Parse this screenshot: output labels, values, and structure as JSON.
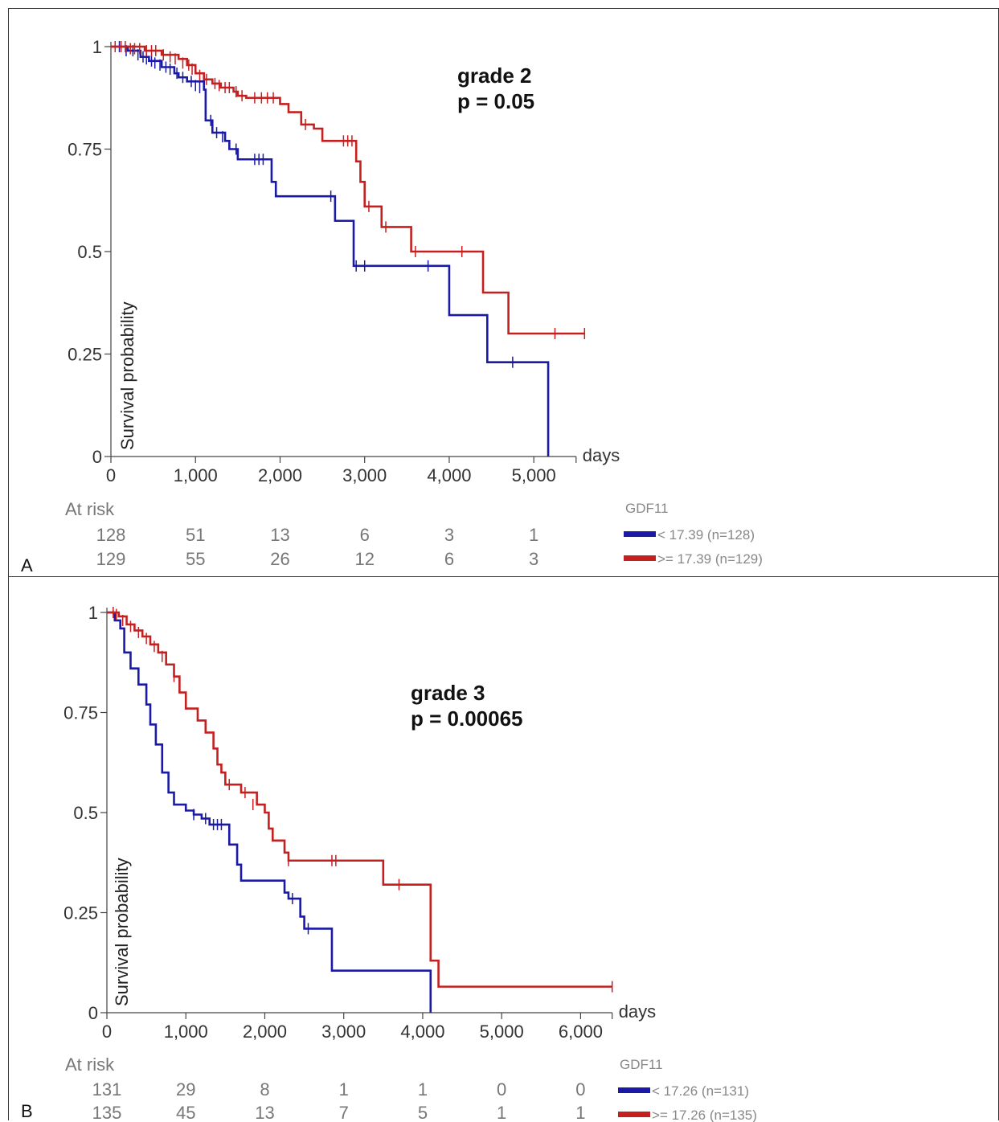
{
  "chart_data": [
    {
      "type": "line",
      "panel_label": "A",
      "annotation": [
        "grade 2",
        "p = 0.05"
      ],
      "xlabel": "days",
      "ylabel": "Survival probability",
      "xlim": [
        0,
        5500
      ],
      "ylim": [
        0,
        1
      ],
      "x_ticks": [
        0,
        1000,
        2000,
        3000,
        4000,
        5000
      ],
      "x_tick_labels": [
        "0",
        "1,000",
        "2,000",
        "3,000",
        "4,000",
        "5,000"
      ],
      "y_ticks": [
        0,
        0.25,
        0.5,
        0.75,
        1
      ],
      "y_tick_labels": [
        "0",
        "0.25",
        "0.5",
        "0.75",
        "1"
      ],
      "at_risk_label": "At risk",
      "legend_title": "GDF11",
      "legend_position": "bottom-right",
      "series": [
        {
          "name": "< 17.39 (n=128)",
          "color": "#1a1aa6",
          "at_risk": [
            "128",
            "51",
            "13",
            "6",
            "3",
            "1"
          ],
          "steps": [
            [
              0,
              1
            ],
            [
              200,
              0.99
            ],
            [
              350,
              0.975
            ],
            [
              450,
              0.965
            ],
            [
              600,
              0.95
            ],
            [
              750,
              0.935
            ],
            [
              800,
              0.925
            ],
            [
              900,
              0.915
            ],
            [
              1100,
              0.895
            ],
            [
              1120,
              0.82
            ],
            [
              1200,
              0.79
            ],
            [
              1350,
              0.77
            ],
            [
              1400,
              0.75
            ],
            [
              1500,
              0.725
            ],
            [
              1900,
              0.67
            ],
            [
              1950,
              0.635
            ],
            [
              2650,
              0.575
            ],
            [
              2870,
              0.465
            ],
            [
              4000,
              0.345
            ],
            [
              4450,
              0.23
            ],
            [
              5170,
              0
            ]
          ],
          "censor": [
            [
              100,
              1
            ],
            [
              180,
              0.99
            ],
            [
              260,
              0.99
            ],
            [
              320,
              0.98
            ],
            [
              380,
              0.975
            ],
            [
              420,
              0.97
            ],
            [
              480,
              0.965
            ],
            [
              520,
              0.96
            ],
            [
              580,
              0.955
            ],
            [
              650,
              0.95
            ],
            [
              700,
              0.945
            ],
            [
              780,
              0.935
            ],
            [
              850,
              0.925
            ],
            [
              950,
              0.915
            ],
            [
              1000,
              0.905
            ],
            [
              1050,
              0.9
            ],
            [
              1180,
              0.82
            ],
            [
              1250,
              0.79
            ],
            [
              1320,
              0.78
            ],
            [
              1480,
              0.75
            ],
            [
              1700,
              0.725
            ],
            [
              1750,
              0.725
            ],
            [
              1800,
              0.725
            ],
            [
              2600,
              0.635
            ],
            [
              2900,
              0.465
            ],
            [
              3000,
              0.465
            ],
            [
              3750,
              0.465
            ],
            [
              4750,
              0.23
            ]
          ]
        },
        {
          "name": ">= 17.39 (n=129)",
          "color": "#c42020",
          "at_risk": [
            "129",
            "55",
            "26",
            "12",
            "6",
            "3"
          ],
          "steps": [
            [
              0,
              1
            ],
            [
              400,
              0.99
            ],
            [
              600,
              0.98
            ],
            [
              800,
              0.97
            ],
            [
              900,
              0.955
            ],
            [
              1000,
              0.935
            ],
            [
              1100,
              0.92
            ],
            [
              1200,
              0.91
            ],
            [
              1300,
              0.9
            ],
            [
              1450,
              0.89
            ],
            [
              1500,
              0.88
            ],
            [
              1600,
              0.875
            ],
            [
              2000,
              0.86
            ],
            [
              2100,
              0.84
            ],
            [
              2250,
              0.81
            ],
            [
              2400,
              0.8
            ],
            [
              2500,
              0.77
            ],
            [
              2900,
              0.72
            ],
            [
              2950,
              0.67
            ],
            [
              3000,
              0.61
            ],
            [
              3200,
              0.56
            ],
            [
              3550,
              0.5
            ],
            [
              4400,
              0.4
            ],
            [
              4700,
              0.3
            ],
            [
              5600,
              0.3
            ]
          ],
          "censor": [
            [
              50,
              1
            ],
            [
              120,
              1
            ],
            [
              170,
              1
            ],
            [
              230,
              0.995
            ],
            [
              280,
              0.995
            ],
            [
              340,
              0.995
            ],
            [
              420,
              0.99
            ],
            [
              480,
              0.99
            ],
            [
              530,
              0.99
            ],
            [
              620,
              0.98
            ],
            [
              700,
              0.975
            ],
            [
              760,
              0.97
            ],
            [
              850,
              0.96
            ],
            [
              920,
              0.955
            ],
            [
              960,
              0.945
            ],
            [
              1050,
              0.93
            ],
            [
              1130,
              0.92
            ],
            [
              1230,
              0.91
            ],
            [
              1280,
              0.905
            ],
            [
              1350,
              0.9
            ],
            [
              1400,
              0.9
            ],
            [
              1480,
              0.89
            ],
            [
              1550,
              0.88
            ],
            [
              1700,
              0.875
            ],
            [
              1780,
              0.875
            ],
            [
              1850,
              0.875
            ],
            [
              1920,
              0.875
            ],
            [
              2300,
              0.81
            ],
            [
              2750,
              0.77
            ],
            [
              2800,
              0.77
            ],
            [
              2850,
              0.77
            ],
            [
              3050,
              0.61
            ],
            [
              3250,
              0.56
            ],
            [
              3600,
              0.5
            ],
            [
              4150,
              0.5
            ],
            [
              5250,
              0.3
            ],
            [
              5600,
              0.3
            ]
          ]
        }
      ]
    },
    {
      "type": "line",
      "panel_label": "B",
      "annotation": [
        "grade 3",
        "p = 0.00065"
      ],
      "xlabel": "days",
      "ylabel": "Survival probability",
      "xlim": [
        0,
        6400
      ],
      "ylim": [
        0,
        1
      ],
      "x_ticks": [
        0,
        1000,
        2000,
        3000,
        4000,
        5000,
        6000
      ],
      "x_tick_labels": [
        "0",
        "1,000",
        "2,000",
        "3,000",
        "4,000",
        "5,000",
        "6,000"
      ],
      "y_ticks": [
        0,
        0.25,
        0.5,
        0.75,
        1
      ],
      "y_tick_labels": [
        "0",
        "0.25",
        "0.5",
        "0.75",
        "1"
      ],
      "at_risk_label": "At risk",
      "legend_title": "GDF11",
      "legend_position": "bottom-right",
      "series": [
        {
          "name": "< 17.26 (n=131)",
          "color": "#1a1aa6",
          "at_risk": [
            "131",
            "29",
            "8",
            "1",
            "1",
            "0",
            "0"
          ],
          "steps": [
            [
              0,
              1
            ],
            [
              100,
              0.98
            ],
            [
              170,
              0.96
            ],
            [
              220,
              0.9
            ],
            [
              300,
              0.86
            ],
            [
              400,
              0.82
            ],
            [
              500,
              0.77
            ],
            [
              550,
              0.72
            ],
            [
              620,
              0.67
            ],
            [
              700,
              0.6
            ],
            [
              780,
              0.55
            ],
            [
              850,
              0.52
            ],
            [
              1000,
              0.505
            ],
            [
              1100,
              0.495
            ],
            [
              1200,
              0.485
            ],
            [
              1300,
              0.47
            ],
            [
              1500,
              0.47
            ],
            [
              1550,
              0.42
            ],
            [
              1650,
              0.37
            ],
            [
              1700,
              0.33
            ],
            [
              2250,
              0.3
            ],
            [
              2300,
              0.285
            ],
            [
              2450,
              0.24
            ],
            [
              2500,
              0.21
            ],
            [
              2850,
              0.105
            ],
            [
              4100,
              0
            ]
          ],
          "censor": [
            [
              1100,
              0.495
            ],
            [
              1250,
              0.485
            ],
            [
              1350,
              0.47
            ],
            [
              1400,
              0.47
            ],
            [
              1450,
              0.47
            ],
            [
              2350,
              0.285
            ],
            [
              2550,
              0.21
            ]
          ]
        },
        {
          "name": ">= 17.26 (n=135)",
          "color": "#c42020",
          "at_risk": [
            "135",
            "45",
            "13",
            "7",
            "5",
            "1",
            "1"
          ],
          "steps": [
            [
              0,
              1
            ],
            [
              150,
              0.99
            ],
            [
              250,
              0.97
            ],
            [
              350,
              0.955
            ],
            [
              450,
              0.94
            ],
            [
              550,
              0.92
            ],
            [
              650,
              0.9
            ],
            [
              750,
              0.87
            ],
            [
              850,
              0.84
            ],
            [
              920,
              0.8
            ],
            [
              1000,
              0.76
            ],
            [
              1150,
              0.73
            ],
            [
              1250,
              0.7
            ],
            [
              1350,
              0.66
            ],
            [
              1400,
              0.62
            ],
            [
              1450,
              0.6
            ],
            [
              1500,
              0.57
            ],
            [
              1700,
              0.55
            ],
            [
              1900,
              0.52
            ],
            [
              2000,
              0.5
            ],
            [
              2050,
              0.46
            ],
            [
              2100,
              0.43
            ],
            [
              2250,
              0.4
            ],
            [
              2300,
              0.38
            ],
            [
              3500,
              0.32
            ],
            [
              4100,
              0.13
            ],
            [
              4200,
              0.065
            ],
            [
              6400,
              0.065
            ]
          ],
          "censor": [
            [
              80,
              1
            ],
            [
              120,
              0.995
            ],
            [
              200,
              0.98
            ],
            [
              300,
              0.965
            ],
            [
              400,
              0.95
            ],
            [
              500,
              0.935
            ],
            [
              600,
              0.915
            ],
            [
              700,
              0.89
            ],
            [
              850,
              0.84
            ],
            [
              1550,
              0.57
            ],
            [
              1750,
              0.55
            ],
            [
              1850,
              0.52
            ],
            [
              2300,
              0.38
            ],
            [
              2850,
              0.38
            ],
            [
              2900,
              0.38
            ],
            [
              3700,
              0.32
            ],
            [
              6400,
              0.065
            ]
          ]
        }
      ]
    }
  ]
}
